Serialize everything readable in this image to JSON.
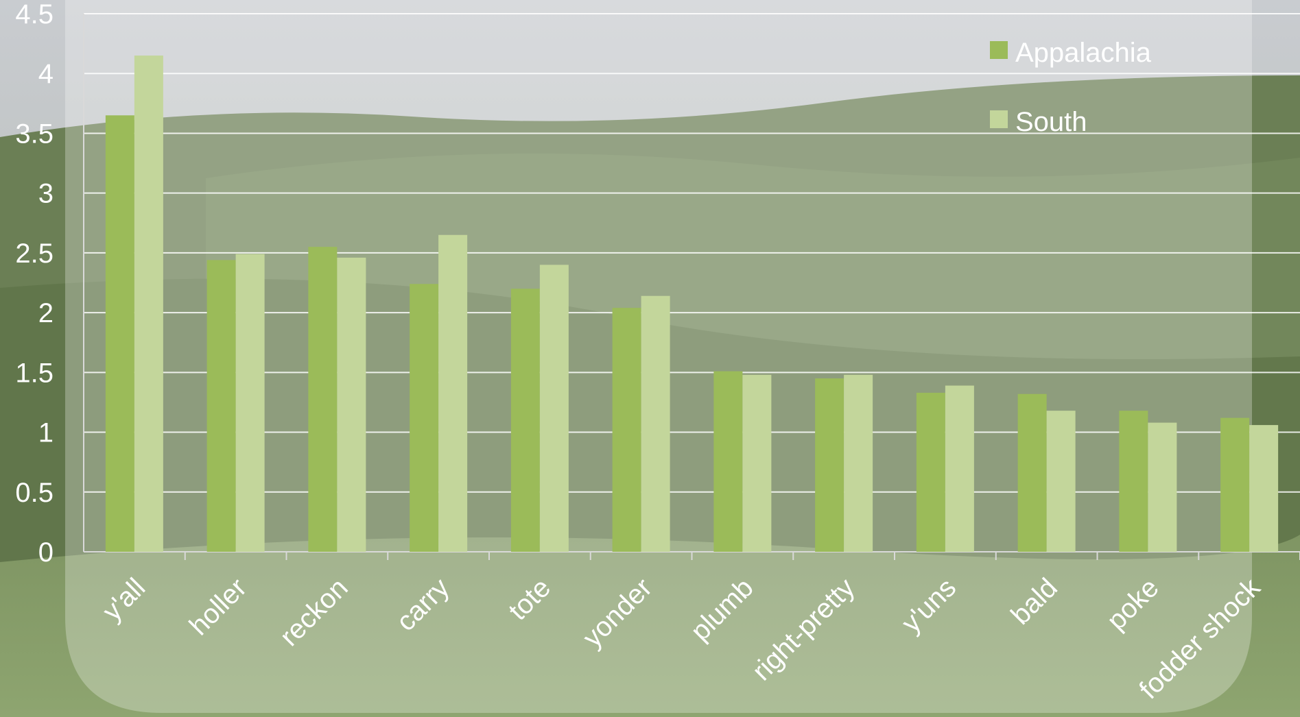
{
  "colors": {
    "appalachia": "#9bbb59",
    "south": "#c3d69b",
    "gridline": "#ffffff",
    "text": "#ffffff"
  },
  "background": {
    "description_icon": "landscape-photo-rolling-hills"
  },
  "chart_data": {
    "type": "bar",
    "title": "",
    "xlabel": "",
    "ylabel": "",
    "ylim": [
      0,
      4.5
    ],
    "yticks": [
      "0",
      "0.5",
      "1",
      "1.5",
      "2",
      "2.5",
      "3",
      "3.5",
      "4",
      "4.5"
    ],
    "grid": true,
    "legend_position": "top-right",
    "categories": [
      "y'all",
      "holler",
      "reckon",
      "carry",
      "tote",
      "yonder",
      "plumb",
      "right-pretty",
      "y'uns",
      "bald",
      "poke",
      "fodder shock"
    ],
    "series": [
      {
        "name": "Appalachia",
        "color": "#9bbb59",
        "values": [
          3.65,
          2.44,
          2.55,
          2.24,
          2.2,
          2.04,
          1.51,
          1.45,
          1.33,
          1.32,
          1.18,
          1.12
        ]
      },
      {
        "name": "South",
        "color": "#c3d69b",
        "values": [
          4.15,
          2.49,
          2.46,
          2.65,
          2.4,
          2.14,
          1.48,
          1.48,
          1.39,
          1.18,
          1.08,
          1.06
        ]
      }
    ]
  }
}
